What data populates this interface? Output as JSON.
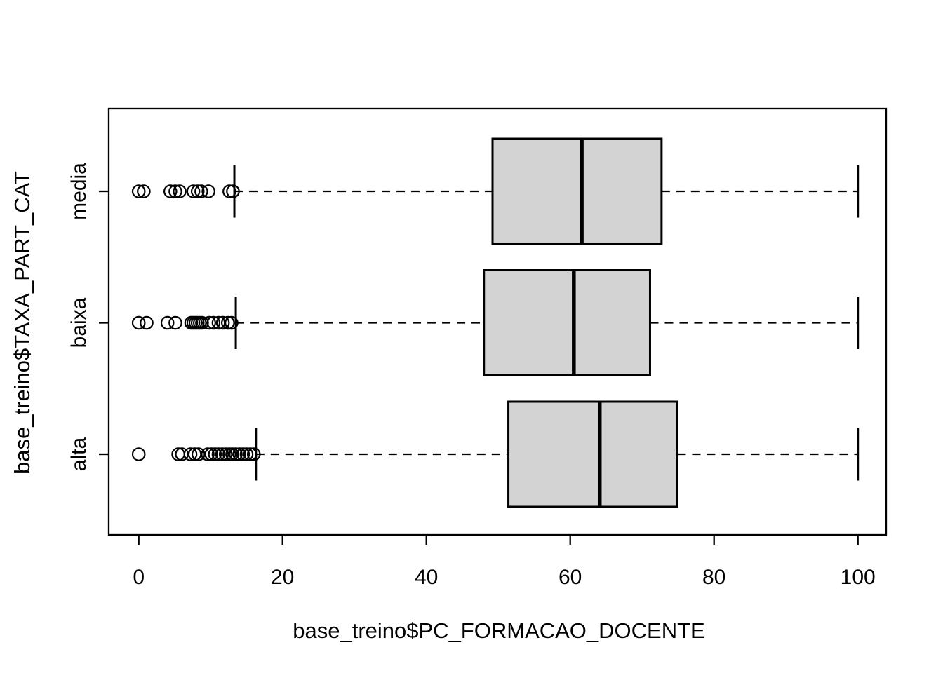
{
  "chart_data": {
    "type": "boxplot",
    "orientation": "horizontal",
    "title": "",
    "xlabel": "base_treino$PC_FORMACAO_DOCENTE",
    "ylabel": "base_treino$TAXA_PART_CAT",
    "xlim": [
      0,
      100
    ],
    "x_ticks": [
      0,
      20,
      40,
      60,
      80,
      100
    ],
    "x_tick_labels": [
      "0",
      "20",
      "40",
      "60",
      "80",
      "100"
    ],
    "categories_top_to_bottom": [
      "media",
      "baixa",
      "alta"
    ],
    "grid": false,
    "legend": "none",
    "colors": {
      "box_fill": "#D3D3D3",
      "stroke": "#000000",
      "background": "#FFFFFF"
    },
    "series": [
      {
        "name": "media",
        "whisker_min": 13.3,
        "q1": 49.2,
        "median": 61.6,
        "q3": 72.7,
        "whisker_max": 100,
        "outliers": [
          0,
          0.7,
          4.4,
          5.1,
          5.7,
          7.6,
          8.2,
          8.7,
          9.7,
          12.6,
          13.1
        ]
      },
      {
        "name": "baixa",
        "whisker_min": 13.5,
        "q1": 48.0,
        "median": 60.5,
        "q3": 71.1,
        "whisker_max": 100,
        "outliers": [
          0,
          1.1,
          4.0,
          5.1,
          7.3,
          7.6,
          7.9,
          8.2,
          8.5,
          8.8,
          9.8,
          10.4,
          11.1,
          11.7,
          12.4,
          12.9
        ]
      },
      {
        "name": "alta",
        "whisker_min": 16.3,
        "q1": 51.4,
        "median": 64.1,
        "q3": 74.9,
        "whisker_max": 100,
        "outliers": [
          0,
          5.5,
          6.0,
          7.2,
          7.8,
          8.3,
          9.6,
          10.1,
          10.6,
          11.1,
          11.6,
          12.1,
          12.6,
          13.0,
          13.5,
          14.0,
          14.5,
          15.0,
          15.5,
          16.0
        ]
      }
    ]
  }
}
